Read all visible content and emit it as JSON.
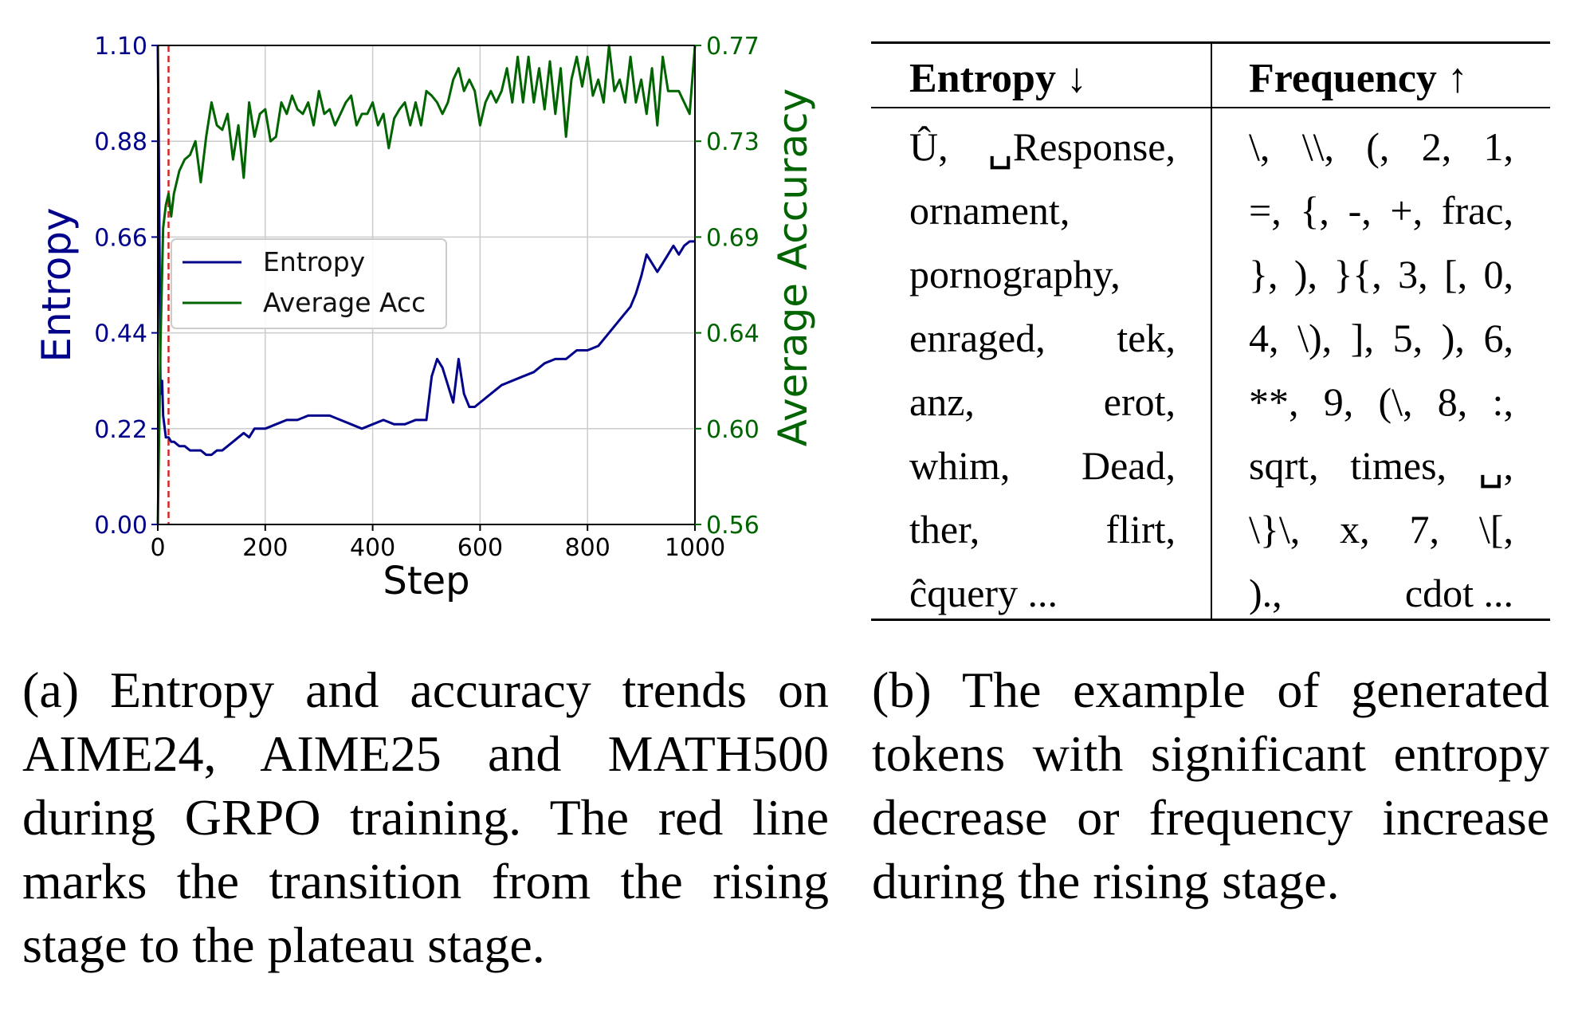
{
  "chart_data": {
    "type": "line",
    "xlabel": "Step",
    "ylabel_left": "Entropy",
    "ylabel_right": "Average Accuracy",
    "xlim": [
      0,
      1000
    ],
    "ylim_left": [
      0.0,
      1.1
    ],
    "ylim_right": [
      0.56,
      0.77
    ],
    "x_ticks": [
      0,
      200,
      400,
      600,
      800,
      1000
    ],
    "y_ticks_left": [
      "0.00",
      "0.22",
      "0.44",
      "0.66",
      "0.88",
      "1.10"
    ],
    "y_ticks_right": [
      "0.56",
      "0.60",
      "0.64",
      "0.69",
      "0.73",
      "0.77"
    ],
    "grid": true,
    "legend_placement": "center-left",
    "transition_step": 20,
    "colors": {
      "entropy": "#00008b",
      "accuracy": "#006400",
      "transition": "#d62728",
      "left_axis_text": "#00008b",
      "right_axis_text": "#006400"
    },
    "series": [
      {
        "name": "Entropy",
        "axis": "left",
        "x": [
          0,
          2,
          5,
          8,
          10,
          15,
          20,
          25,
          30,
          40,
          50,
          60,
          70,
          80,
          90,
          100,
          110,
          120,
          130,
          140,
          150,
          160,
          170,
          180,
          190,
          200,
          220,
          240,
          260,
          280,
          300,
          320,
          340,
          360,
          380,
          400,
          420,
          440,
          460,
          480,
          490,
          500,
          510,
          520,
          530,
          540,
          550,
          560,
          570,
          580,
          590,
          600,
          620,
          640,
          660,
          680,
          700,
          720,
          740,
          760,
          780,
          800,
          820,
          840,
          860,
          880,
          890,
          900,
          910,
          920,
          930,
          940,
          950,
          960,
          970,
          980,
          990,
          1000
        ],
        "values": [
          1.1,
          0.85,
          0.3,
          0.33,
          0.25,
          0.2,
          0.2,
          0.19,
          0.19,
          0.18,
          0.18,
          0.17,
          0.17,
          0.17,
          0.16,
          0.16,
          0.17,
          0.17,
          0.18,
          0.19,
          0.2,
          0.21,
          0.2,
          0.22,
          0.22,
          0.22,
          0.23,
          0.24,
          0.24,
          0.25,
          0.25,
          0.25,
          0.24,
          0.23,
          0.22,
          0.23,
          0.24,
          0.23,
          0.23,
          0.24,
          0.24,
          0.24,
          0.34,
          0.38,
          0.36,
          0.32,
          0.28,
          0.38,
          0.3,
          0.27,
          0.27,
          0.28,
          0.3,
          0.32,
          0.33,
          0.34,
          0.35,
          0.37,
          0.38,
          0.38,
          0.4,
          0.4,
          0.41,
          0.44,
          0.47,
          0.5,
          0.53,
          0.57,
          0.62,
          0.6,
          0.58,
          0.6,
          0.62,
          0.64,
          0.62,
          0.64,
          0.65,
          0.65
        ]
      },
      {
        "name": "Average Acc",
        "axis": "right",
        "x": [
          0,
          5,
          10,
          15,
          20,
          25,
          30,
          35,
          40,
          50,
          60,
          70,
          80,
          90,
          100,
          110,
          120,
          130,
          140,
          150,
          160,
          170,
          180,
          190,
          200,
          210,
          220,
          230,
          240,
          250,
          260,
          270,
          280,
          290,
          300,
          310,
          320,
          330,
          340,
          350,
          360,
          370,
          380,
          390,
          400,
          410,
          420,
          430,
          440,
          450,
          460,
          470,
          480,
          490,
          500,
          510,
          520,
          530,
          540,
          550,
          560,
          570,
          580,
          590,
          600,
          610,
          620,
          630,
          640,
          650,
          660,
          670,
          680,
          690,
          700,
          710,
          720,
          730,
          740,
          750,
          760,
          770,
          780,
          790,
          800,
          810,
          820,
          830,
          840,
          850,
          860,
          870,
          880,
          890,
          900,
          910,
          920,
          930,
          940,
          950,
          960,
          970,
          980,
          990,
          1000
        ],
        "values": [
          0.56,
          0.64,
          0.69,
          0.7,
          0.705,
          0.695,
          0.705,
          0.71,
          0.715,
          0.72,
          0.722,
          0.728,
          0.71,
          0.73,
          0.745,
          0.735,
          0.733,
          0.74,
          0.72,
          0.735,
          0.712,
          0.745,
          0.73,
          0.74,
          0.742,
          0.728,
          0.73,
          0.745,
          0.74,
          0.748,
          0.742,
          0.74,
          0.745,
          0.735,
          0.75,
          0.74,
          0.742,
          0.735,
          0.74,
          0.745,
          0.748,
          0.735,
          0.74,
          0.74,
          0.745,
          0.735,
          0.74,
          0.725,
          0.738,
          0.742,
          0.745,
          0.735,
          0.745,
          0.735,
          0.75,
          0.748,
          0.745,
          0.74,
          0.745,
          0.755,
          0.76,
          0.75,
          0.755,
          0.75,
          0.735,
          0.745,
          0.75,
          0.745,
          0.75,
          0.76,
          0.745,
          0.765,
          0.745,
          0.765,
          0.745,
          0.76,
          0.742,
          0.763,
          0.74,
          0.76,
          0.73,
          0.755,
          0.765,
          0.752,
          0.765,
          0.748,
          0.755,
          0.745,
          0.77,
          0.75,
          0.755,
          0.745,
          0.765,
          0.745,
          0.755,
          0.74,
          0.76,
          0.735,
          0.765,
          0.75,
          0.75,
          0.75,
          0.745,
          0.74,
          0.77
        ]
      }
    ]
  },
  "table": {
    "headers": [
      "Entropy ↓",
      "Frequency ↑"
    ],
    "entropy_lines": [
      [
        "Û,",
        "␣Response,"
      ],
      [
        "ornament,"
      ],
      [
        "pornography,"
      ],
      [
        "enraged,",
        "tek,"
      ],
      [
        "anz,",
        "erot,"
      ],
      [
        "whim,",
        "Dead,"
      ],
      [
        "ther,",
        "flirt,"
      ],
      [
        "ĉquery ..."
      ]
    ],
    "frequency_lines": [
      [
        "\\,",
        "\\\\,",
        "(,",
        "2,",
        "1,"
      ],
      [
        "=,",
        "{,",
        "-,",
        "+,",
        "frac,"
      ],
      [
        "},",
        "),",
        "}{,",
        "3,",
        "[,",
        "0,"
      ],
      [
        "4,",
        "\\),",
        "],",
        "5,",
        "),",
        "6,"
      ],
      [
        "**,",
        "9,",
        "(\\,",
        "8,",
        ":,"
      ],
      [
        "sqrt,",
        "times,",
        "␣,"
      ],
      [
        "\\}\\,",
        "x,",
        "7,",
        "\\[,"
      ],
      [
        ").,",
        "cdot ..."
      ]
    ]
  },
  "captions": {
    "a": "(a) Entropy and accuracy trends on AIME24, AIME25 and MATH500 during GRPO training. The red line marks the transition from the rising stage to the plateau stage.",
    "b": "(b) The example of generated tokens with significant entropy decrease or frequency increase during the rising stage."
  }
}
